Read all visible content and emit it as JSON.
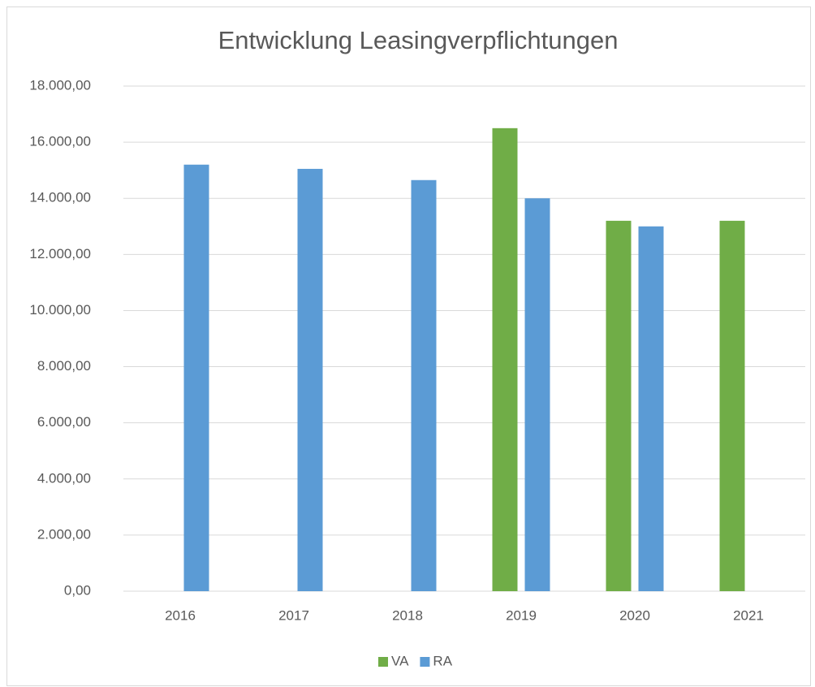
{
  "chart_data": {
    "type": "bar",
    "title": "Entwicklung Leasingverpflichtungen",
    "categories": [
      "2016",
      "2017",
      "2018",
      "2019",
      "2020",
      "2021"
    ],
    "series": [
      {
        "name": "VA",
        "color": "#70ad47",
        "values": [
          null,
          null,
          null,
          16500,
          13200,
          13200
        ]
      },
      {
        "name": "RA",
        "color": "#5b9bd5",
        "values": [
          15200,
          15050,
          14650,
          14000,
          13000,
          null
        ]
      }
    ],
    "ylim": [
      0,
      18000
    ],
    "yticks": [
      {
        "value": 0,
        "label": "0,00"
      },
      {
        "value": 2000,
        "label": "2.000,00"
      },
      {
        "value": 4000,
        "label": "4.000,00"
      },
      {
        "value": 6000,
        "label": "6.000,00"
      },
      {
        "value": 8000,
        "label": "8.000,00"
      },
      {
        "value": 10000,
        "label": "10.000,00"
      },
      {
        "value": 12000,
        "label": "12.000,00"
      },
      {
        "value": 14000,
        "label": "14.000,00"
      },
      {
        "value": 16000,
        "label": "16.000,00"
      },
      {
        "value": 18000,
        "label": "18.000,00"
      }
    ],
    "grid": true,
    "legend": "bottom"
  }
}
